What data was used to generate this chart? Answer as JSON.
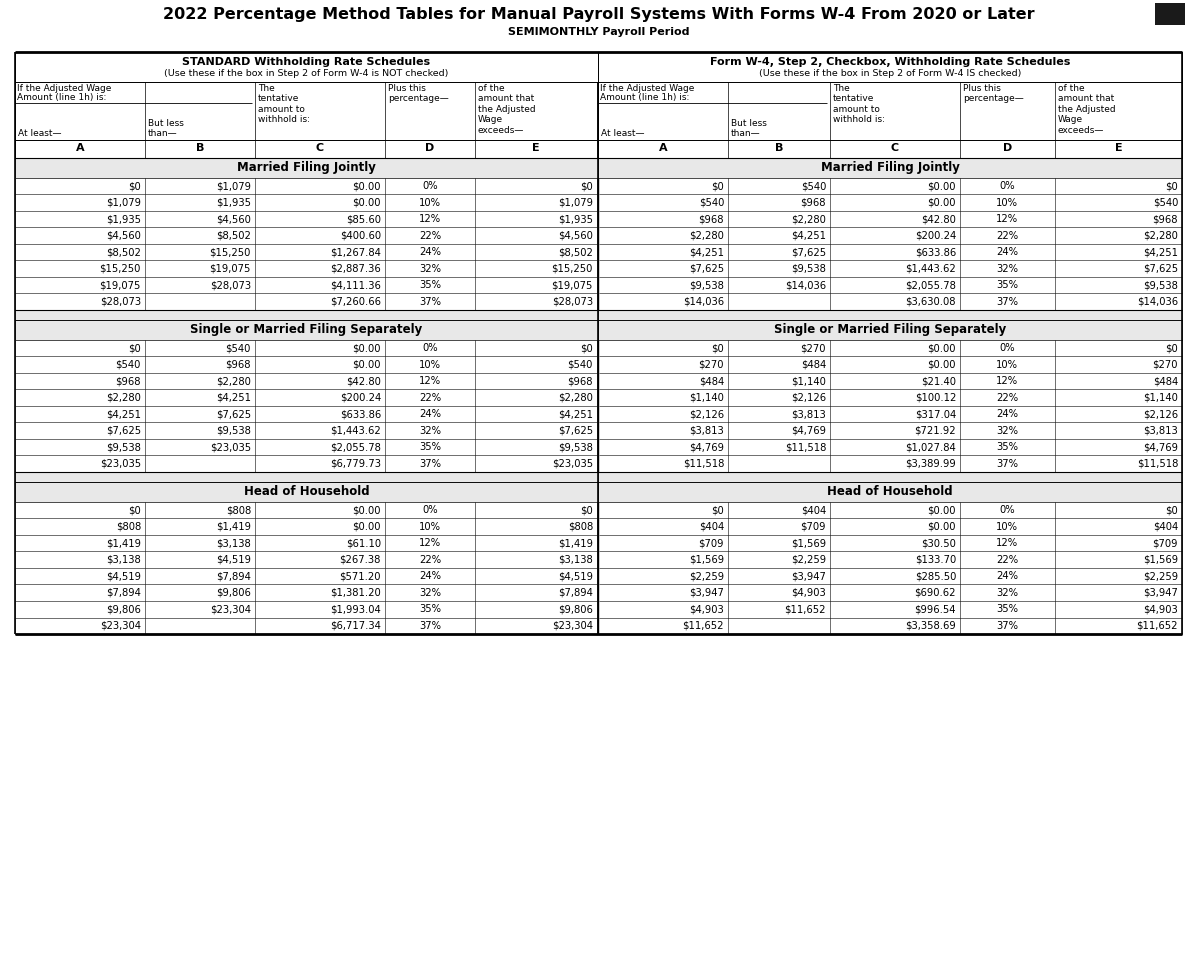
{
  "title": "2022 Percentage Method Tables for Manual Payroll Systems With Forms W-4 From 2020 or Later",
  "subtitle": "SEMIMONTHLY Payroll Period",
  "left_section_header1": "STANDARD Withholding Rate Schedules",
  "left_section_header2": "(Use these if the box in Step 2 of Form W-4 is NOT checked)",
  "right_section_header1": "Form W-4, Step 2, Checkbox, Withholding Rate Schedules",
  "right_section_header2": "(Use these if the box in Step 2 of Form W-4 IS checked)",
  "sections": [
    {
      "title": "Married Filing Jointly",
      "left": [
        [
          "$0",
          "$1,079",
          "$0.00",
          "0%",
          "$0"
        ],
        [
          "$1,079",
          "$1,935",
          "$0.00",
          "10%",
          "$1,079"
        ],
        [
          "$1,935",
          "$4,560",
          "$85.60",
          "12%",
          "$1,935"
        ],
        [
          "$4,560",
          "$8,502",
          "$400.60",
          "22%",
          "$4,560"
        ],
        [
          "$8,502",
          "$15,250",
          "$1,267.84",
          "24%",
          "$8,502"
        ],
        [
          "$15,250",
          "$19,075",
          "$2,887.36",
          "32%",
          "$15,250"
        ],
        [
          "$19,075",
          "$28,073",
          "$4,111.36",
          "35%",
          "$19,075"
        ],
        [
          "$28,073",
          "",
          "$7,260.66",
          "37%",
          "$28,073"
        ]
      ],
      "right": [
        [
          "$0",
          "$540",
          "$0.00",
          "0%",
          "$0"
        ],
        [
          "$540",
          "$968",
          "$0.00",
          "10%",
          "$540"
        ],
        [
          "$968",
          "$2,280",
          "$42.80",
          "12%",
          "$968"
        ],
        [
          "$2,280",
          "$4,251",
          "$200.24",
          "22%",
          "$2,280"
        ],
        [
          "$4,251",
          "$7,625",
          "$633.86",
          "24%",
          "$4,251"
        ],
        [
          "$7,625",
          "$9,538",
          "$1,443.62",
          "32%",
          "$7,625"
        ],
        [
          "$9,538",
          "$14,036",
          "$2,055.78",
          "35%",
          "$9,538"
        ],
        [
          "$14,036",
          "",
          "$3,630.08",
          "37%",
          "$14,036"
        ]
      ]
    },
    {
      "title": "Single or Married Filing Separately",
      "left": [
        [
          "$0",
          "$540",
          "$0.00",
          "0%",
          "$0"
        ],
        [
          "$540",
          "$968",
          "$0.00",
          "10%",
          "$540"
        ],
        [
          "$968",
          "$2,280",
          "$42.80",
          "12%",
          "$968"
        ],
        [
          "$2,280",
          "$4,251",
          "$200.24",
          "22%",
          "$2,280"
        ],
        [
          "$4,251",
          "$7,625",
          "$633.86",
          "24%",
          "$4,251"
        ],
        [
          "$7,625",
          "$9,538",
          "$1,443.62",
          "32%",
          "$7,625"
        ],
        [
          "$9,538",
          "$23,035",
          "$2,055.78",
          "35%",
          "$9,538"
        ],
        [
          "$23,035",
          "",
          "$6,779.73",
          "37%",
          "$23,035"
        ]
      ],
      "right": [
        [
          "$0",
          "$270",
          "$0.00",
          "0%",
          "$0"
        ],
        [
          "$270",
          "$484",
          "$0.00",
          "10%",
          "$270"
        ],
        [
          "$484",
          "$1,140",
          "$21.40",
          "12%",
          "$484"
        ],
        [
          "$1,140",
          "$2,126",
          "$100.12",
          "22%",
          "$1,140"
        ],
        [
          "$2,126",
          "$3,813",
          "$317.04",
          "24%",
          "$2,126"
        ],
        [
          "$3,813",
          "$4,769",
          "$721.92",
          "32%",
          "$3,813"
        ],
        [
          "$4,769",
          "$11,518",
          "$1,027.84",
          "35%",
          "$4,769"
        ],
        [
          "$11,518",
          "",
          "$3,389.99",
          "37%",
          "$11,518"
        ]
      ]
    },
    {
      "title": "Head of Household",
      "left": [
        [
          "$0",
          "$808",
          "$0.00",
          "0%",
          "$0"
        ],
        [
          "$808",
          "$1,419",
          "$0.00",
          "10%",
          "$808"
        ],
        [
          "$1,419",
          "$3,138",
          "$61.10",
          "12%",
          "$1,419"
        ],
        [
          "$3,138",
          "$4,519",
          "$267.38",
          "22%",
          "$3,138"
        ],
        [
          "$4,519",
          "$7,894",
          "$571.20",
          "24%",
          "$4,519"
        ],
        [
          "$7,894",
          "$9,806",
          "$1,381.20",
          "32%",
          "$7,894"
        ],
        [
          "$9,806",
          "$23,304",
          "$1,993.04",
          "35%",
          "$9,806"
        ],
        [
          "$23,304",
          "",
          "$6,717.34",
          "37%",
          "$23,304"
        ]
      ],
      "right": [
        [
          "$0",
          "$404",
          "$0.00",
          "0%",
          "$0"
        ],
        [
          "$404",
          "$709",
          "$0.00",
          "10%",
          "$404"
        ],
        [
          "$709",
          "$1,569",
          "$30.50",
          "12%",
          "$709"
        ],
        [
          "$1,569",
          "$2,259",
          "$133.70",
          "22%",
          "$1,569"
        ],
        [
          "$2,259",
          "$3,947",
          "$285.50",
          "24%",
          "$2,259"
        ],
        [
          "$3,947",
          "$4,903",
          "$690.62",
          "32%",
          "$3,947"
        ],
        [
          "$4,903",
          "$11,652",
          "$996.54",
          "35%",
          "$4,903"
        ],
        [
          "$11,652",
          "",
          "$3,358.69",
          "37%",
          "$11,652"
        ]
      ]
    }
  ],
  "bg_color": "#ffffff",
  "section_bg": "#e8e8e8",
  "gap_bg": "#e8e8e8"
}
